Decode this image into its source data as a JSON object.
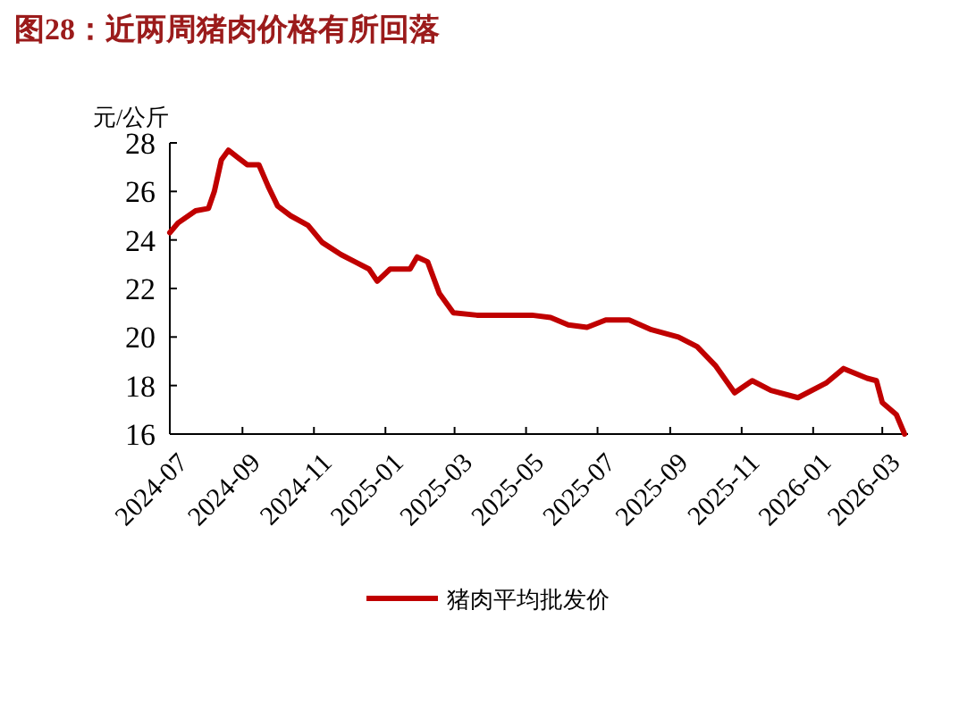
{
  "chart_data": {
    "type": "line",
    "title": "图28：近两周猪肉价格有所回落",
    "ylabel": "元/公斤",
    "x": [
      "2024-07-01",
      "2024-07-08",
      "2024-07-23",
      "2024-08-03",
      "2024-08-08",
      "2024-08-14",
      "2024-08-20",
      "2024-08-28",
      "2024-09-05",
      "2024-09-15",
      "2024-09-23",
      "2024-10-01",
      "2024-10-12",
      "2024-10-27",
      "2024-11-08",
      "2024-11-24",
      "2024-12-06",
      "2024-12-18",
      "2024-12-25",
      "2025-01-05",
      "2025-01-22",
      "2025-01-28",
      "2025-02-06",
      "2025-02-16",
      "2025-02-28",
      "2025-03-20",
      "2025-04-13",
      "2025-05-06",
      "2025-05-22",
      "2025-06-06",
      "2025-06-22",
      "2025-07-08",
      "2025-07-28",
      "2025-08-16",
      "2025-09-08",
      "2025-09-24",
      "2025-10-10",
      "2025-10-26",
      "2025-11-10",
      "2025-11-26",
      "2025-12-19",
      "2026-01-12",
      "2026-01-27",
      "2026-02-16",
      "2026-02-24",
      "2026-03-01",
      "2026-03-13",
      "2026-03-20"
    ],
    "series": [
      {
        "name": "猪肉平均批发价",
        "color": "#c00000",
        "values": [
          24.3,
          24.7,
          25.2,
          25.3,
          26.0,
          27.3,
          27.7,
          27.4,
          27.1,
          27.1,
          26.2,
          25.4,
          25.0,
          24.6,
          23.9,
          23.4,
          23.1,
          22.8,
          22.3,
          22.8,
          22.8,
          23.3,
          23.1,
          21.8,
          21.0,
          20.9,
          20.9,
          20.9,
          20.8,
          20.5,
          20.4,
          20.7,
          20.7,
          20.3,
          20.0,
          19.6,
          18.8,
          17.7,
          18.2,
          17.8,
          17.5,
          18.1,
          18.7,
          18.3,
          18.2,
          17.3,
          16.8,
          16.0
        ]
      }
    ],
    "xlim": [
      "2024-07-01",
      "2026-03-23"
    ],
    "xticks": [
      "2024-07",
      "2024-09",
      "2024-11",
      "2025-01",
      "2025-03",
      "2025-05",
      "2025-07",
      "2025-09",
      "2025-11",
      "2026-01",
      "2026-03"
    ],
    "ylim": [
      16,
      28
    ],
    "yticks": [
      16,
      18,
      20,
      22,
      24,
      26,
      28
    ],
    "legend": "bottom",
    "grid": false
  }
}
